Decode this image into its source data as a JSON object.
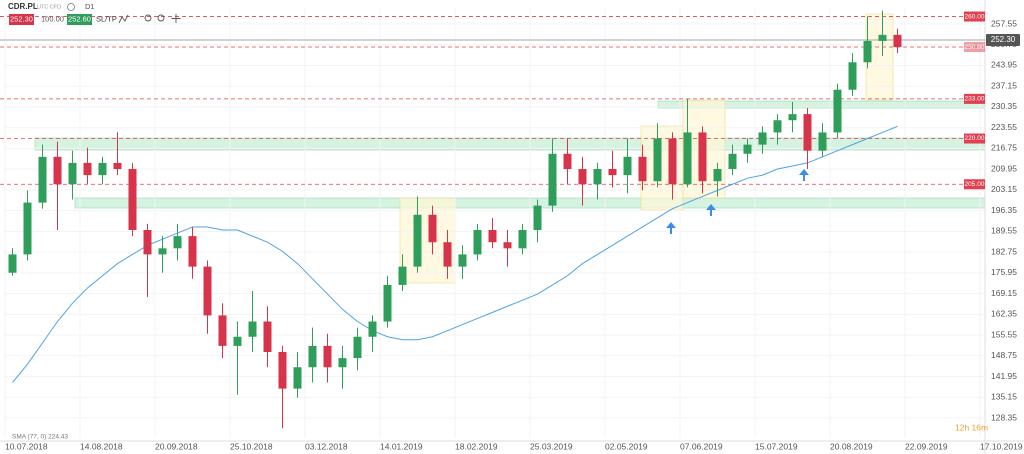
{
  "toolbar": {
    "symbol": "CDR.PL",
    "market": "UTC CFD",
    "timeframe": "D1",
    "sell": "252.30",
    "volume": "100.00",
    "buy": "252.60",
    "sltp": "SL/TP"
  },
  "timer": "12h 16m",
  "chart_data": {
    "type": "candlestick",
    "categories": [
      "10.07.2018",
      null,
      null,
      null,
      null,
      "14.08.2018",
      null,
      null,
      null,
      null,
      "20.09.2018",
      null,
      null,
      null,
      null,
      "25.10.2018",
      null,
      null,
      null,
      null,
      "03.12.2018",
      null,
      null,
      null,
      null,
      "14.01.2019",
      null,
      null,
      null,
      null,
      "18.02.2019",
      null,
      null,
      null,
      null,
      "25.03.2019",
      null,
      null,
      null,
      null,
      "02.05.2019",
      null,
      null,
      null,
      null,
      "07.06.2019",
      null,
      null,
      null,
      null,
      "15.07.2019",
      null,
      null,
      null,
      null,
      "20.08.2019",
      null,
      null,
      null,
      null,
      "22.09.2019",
      null,
      null,
      null,
      null,
      "17.10.2019"
    ],
    "open": [
      176,
      182,
      199,
      214,
      205,
      212,
      208,
      212,
      210,
      190,
      182,
      184,
      188,
      178,
      162,
      152,
      155,
      160,
      150,
      138,
      145,
      152,
      145,
      148,
      155,
      160,
      172,
      178,
      195,
      186,
      178,
      182,
      190,
      186,
      184,
      190,
      198,
      215,
      210,
      205,
      210,
      208,
      214,
      206,
      220,
      205,
      222,
      206,
      210,
      215,
      218,
      222,
      226,
      228,
      216,
      222,
      236,
      245,
      252,
      254,
      null,
      null,
      null,
      null,
      null,
      null
    ],
    "high": [
      184,
      203,
      218,
      219,
      216,
      217,
      214,
      222,
      212,
      192,
      188,
      192,
      191,
      180,
      166,
      160,
      170,
      165,
      152,
      150,
      158,
      156,
      152,
      158,
      162,
      175,
      182,
      201,
      198,
      190,
      185,
      192,
      194,
      190,
      192,
      200,
      220,
      220,
      214,
      212,
      216,
      220,
      218,
      225,
      222,
      233,
      224,
      212,
      218,
      220,
      224,
      228,
      232,
      230,
      225,
      238,
      248,
      260,
      262,
      256,
      null,
      null,
      null,
      null,
      null,
      null
    ],
    "low": [
      175,
      180,
      197,
      190,
      200,
      205,
      205,
      208,
      188,
      168,
      176,
      180,
      174,
      156,
      148,
      136,
      150,
      145,
      125,
      135,
      140,
      140,
      138,
      144,
      150,
      158,
      170,
      176,
      182,
      174,
      174,
      180,
      184,
      178,
      182,
      186,
      196,
      205,
      198,
      200,
      204,
      202,
      203,
      204,
      200,
      204,
      202,
      201,
      208,
      212,
      215,
      218,
      222,
      210,
      214,
      220,
      234,
      243,
      247,
      248,
      null,
      null,
      null,
      null,
      null,
      null
    ],
    "close": [
      182,
      199,
      214,
      205,
      212,
      208,
      212,
      210,
      190,
      182,
      184,
      188,
      178,
      162,
      152,
      155,
      160,
      150,
      138,
      145,
      152,
      145,
      148,
      155,
      160,
      172,
      178,
      195,
      186,
      178,
      182,
      190,
      186,
      184,
      190,
      198,
      215,
      210,
      205,
      210,
      208,
      214,
      206,
      220,
      205,
      222,
      206,
      210,
      215,
      218,
      222,
      226,
      228,
      216,
      222,
      236,
      245,
      252,
      254,
      250,
      null,
      null,
      null,
      null,
      null,
      null
    ],
    "up_color": "#2f9e5a",
    "down_color": "#d7334a",
    "sma": {
      "name": "SMA (77, 0) 224.43",
      "color": "#4da3e6",
      "values": [
        140,
        146,
        153,
        160,
        166,
        171,
        175,
        179,
        182,
        185,
        187,
        189,
        191,
        191,
        190,
        190,
        188,
        186,
        183,
        179,
        174,
        169,
        164,
        160,
        157,
        155,
        154,
        154,
        155,
        157,
        159,
        161,
        163,
        165,
        167,
        169,
        172,
        175,
        179,
        182,
        185,
        188,
        191,
        194,
        197,
        199,
        201,
        203,
        205,
        207,
        208,
        210,
        211,
        212,
        214,
        216,
        218,
        220,
        222,
        224,
        null,
        null,
        null,
        null,
        null,
        null
      ]
    },
    "ylim": [
      121.8,
      262.8
    ],
    "yticks": [
      257.55,
      250.75,
      243.95,
      237.15,
      230.35,
      223.55,
      216.75,
      209.95,
      203.15,
      196.35,
      189.55,
      182.75,
      175.95,
      169.15,
      162.35,
      155.55,
      148.75,
      141.95,
      135.15,
      128.35
    ],
    "levels": [
      {
        "value": 260,
        "label": "260.00"
      },
      {
        "value": 250,
        "label": "250.00"
      },
      {
        "value": 233,
        "label": "233.00"
      },
      {
        "value": 220,
        "label": "220.00"
      },
      {
        "value": 205,
        "label": "205.00"
      }
    ],
    "level_color": "#e0404f",
    "last_price": {
      "value": 252.3,
      "label": "252.30"
    },
    "grid": true
  }
}
